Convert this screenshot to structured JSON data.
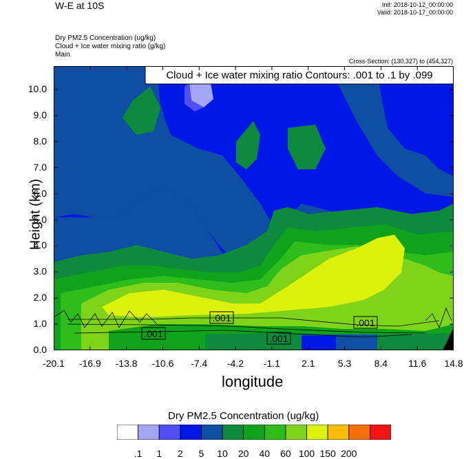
{
  "header": {
    "title": "W-E at 10S",
    "init": "Init: 2018-10-12_00:00:00",
    "valid": "Valid: 2018-10-17_00:00:00",
    "field_lines": [
      "Dry PM2.5 Concentration   (ug/kg)",
      "Cloud + Ice water mixing ratio   (g/kg)",
      "Main"
    ],
    "cross_section": "Cross-Section: (130,327) to (454,327)"
  },
  "colors": {
    "bins": [
      "#ffffff",
      "#a3a6f7",
      "#4f4ff5",
      "#0018e6",
      "#0f4fa3",
      "#0d8a3c",
      "#0fa31c",
      "#2ebd1a",
      "#7fd41a",
      "#dcf20a",
      "#fbbd05",
      "#f7700a",
      "#f51414"
    ]
  },
  "chart_data": {
    "type": "heatmap",
    "xlabel": "longitude",
    "ylabel": "Height (km)",
    "x_ticks": [
      "-20.1",
      "-16.9",
      "-13.8",
      "-10.6",
      "-7.4",
      "-4.2",
      "-1.1",
      "2.1",
      "5.3",
      "8.4",
      "11.6",
      "14.8"
    ],
    "y_ticks": [
      "0.0",
      "1.0",
      "2.0",
      "3.0",
      "4.0",
      "5.0",
      "6.0",
      "7.0",
      "8.0",
      "9.0",
      "10.0"
    ],
    "xlim": [
      -20.1,
      14.8
    ],
    "ylim": [
      0,
      10.9
    ],
    "overlay_title": "Cloud + Ice water mixing ratio Contours: .001 to .1 by .099",
    "contour_labels": [
      ".001",
      ".001",
      ".001",
      ".001"
    ],
    "colorbar": {
      "title": "Dry PM2.5 Concentration  (ug/kg)",
      "levels": [
        ".1",
        "1",
        "2",
        "5",
        "10",
        "20",
        "40",
        "60",
        "100",
        "150",
        "200"
      ]
    }
  }
}
